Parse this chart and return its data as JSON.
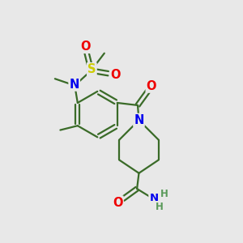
{
  "bg_color": "#e8e8e8",
  "bond_color": "#3a6b28",
  "bond_width": 1.6,
  "atom_colors": {
    "N": "#0000ee",
    "O": "#ee0000",
    "S": "#cccc00",
    "C": "#3a6b28",
    "H": "#5a9a5a"
  },
  "font_size": 9.5,
  "figsize": [
    3.0,
    3.0
  ],
  "dpi": 100,
  "xlim": [
    0,
    10
  ],
  "ylim": [
    0,
    10
  ]
}
